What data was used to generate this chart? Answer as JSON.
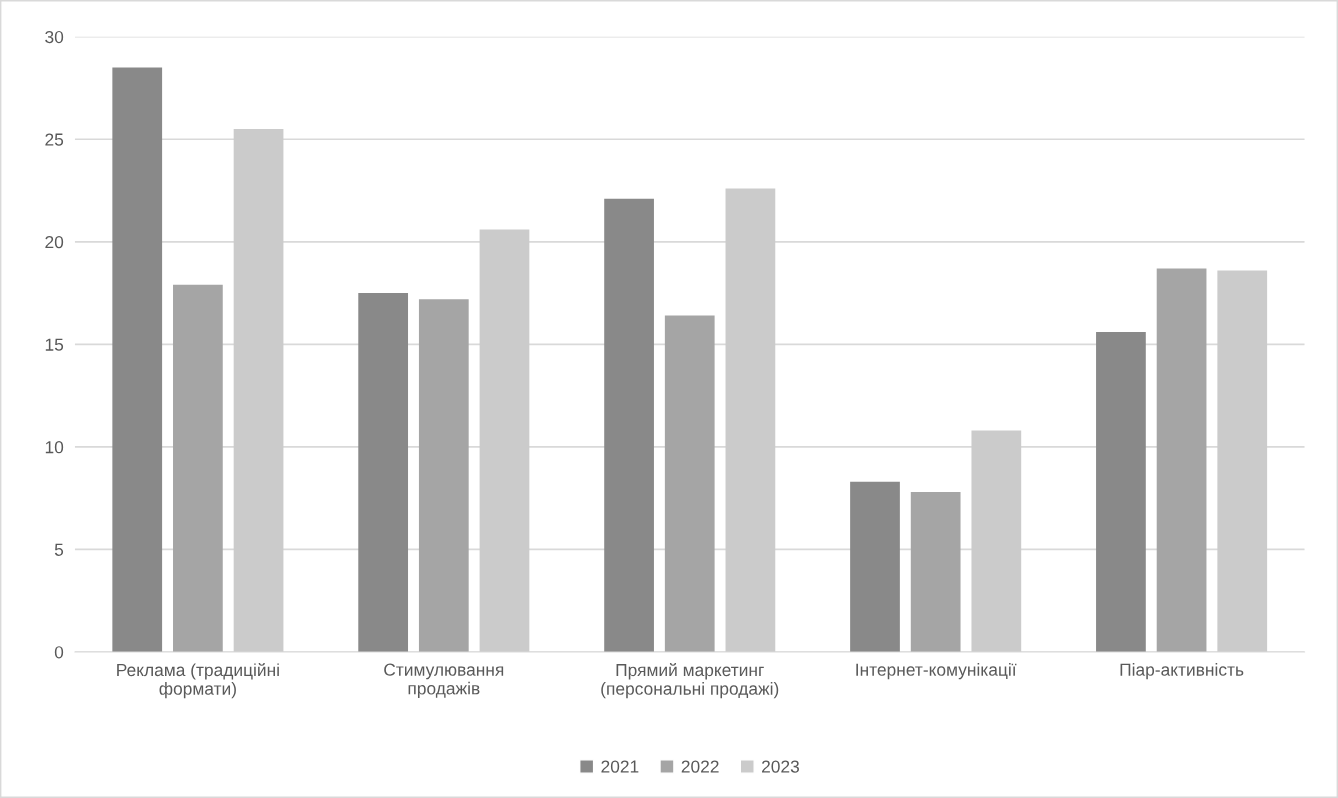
{
  "chart_data": {
    "type": "bar",
    "categories": [
      "Реклама (традиційні\nформати)",
      "Стимулювання\nпродажів",
      "Прямий маркетинг\n(персональні продажі)",
      "Інтернет-комунікації",
      "Піар-активність"
    ],
    "series": [
      {
        "name": "2021",
        "color": "#898989",
        "values": [
          28.5,
          17.5,
          22.1,
          8.3,
          15.6
        ]
      },
      {
        "name": "2022",
        "color": "#a5a5a5",
        "values": [
          17.9,
          17.2,
          16.4,
          7.8,
          18.7
        ]
      },
      {
        "name": "2023",
        "color": "#cbcbcb",
        "values": [
          25.5,
          20.6,
          22.6,
          10.8,
          18.6
        ]
      }
    ],
    "ylim": [
      0,
      30
    ],
    "yticks": [
      0,
      5,
      10,
      15,
      20,
      25,
      30
    ],
    "grid": "y",
    "legend": "bottom"
  }
}
